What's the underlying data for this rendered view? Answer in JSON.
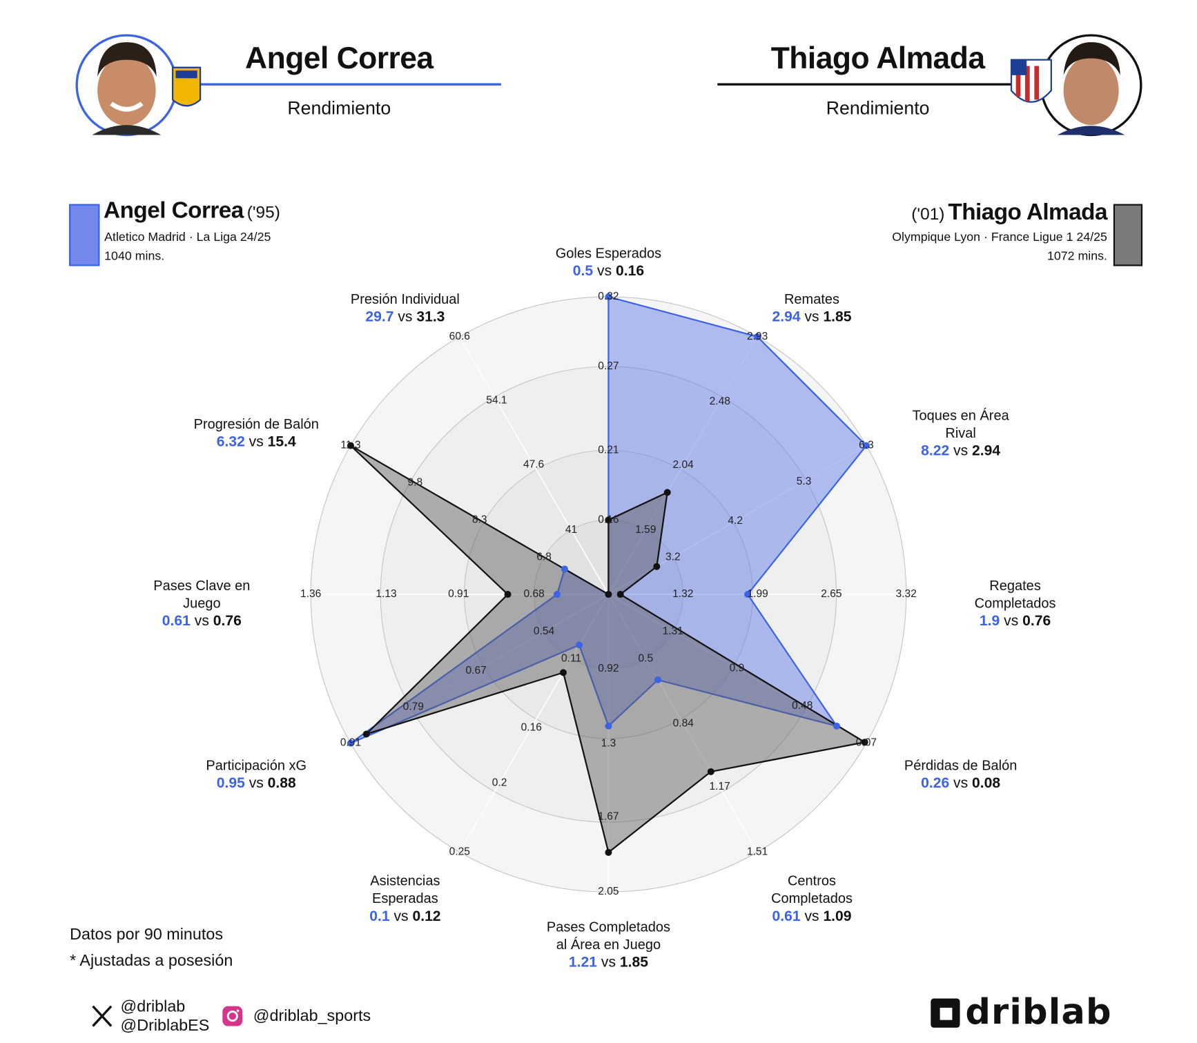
{
  "header": {
    "left": {
      "name": "Angel Correa",
      "subtitle": "Rendimiento"
    },
    "right": {
      "name": "Thiago Almada",
      "subtitle": "Rendimiento"
    }
  },
  "chart_data": {
    "type": "radar",
    "comparison_word": "vs",
    "axes": [
      {
        "label": "Goles Esperados",
        "lim": [
          0.16,
          0.32
        ],
        "ticks": [
          0.16,
          0.21,
          0.27,
          0.32
        ]
      },
      {
        "label": "Remates",
        "lim": [
          1.59,
          2.93
        ],
        "ticks": [
          1.59,
          2.04,
          2.48,
          2.93
        ]
      },
      {
        "label": "Toques en Área\nRival",
        "lim": [
          3.2,
          6.3
        ],
        "ticks": [
          3.2,
          4.2,
          5.3,
          6.3
        ]
      },
      {
        "label": "Regates\nCompletados",
        "lim": [
          1.32,
          3.32
        ],
        "ticks": [
          1.32,
          1.99,
          2.65,
          3.32
        ]
      },
      {
        "label": "Pérdidas de Balón",
        "lim": [
          1.31,
          0.07
        ],
        "ticks": [
          1.31,
          0.9,
          0.48,
          0.07
        ]
      },
      {
        "label": "Centros\nCompletados",
        "lim": [
          0.5,
          1.51
        ],
        "ticks": [
          0.5,
          0.84,
          1.17,
          1.51
        ]
      },
      {
        "label": "Pases Completados\nal Área en Juego",
        "lim": [
          0.92,
          2.05
        ],
        "ticks": [
          0.92,
          1.3,
          1.67,
          2.05
        ]
      },
      {
        "label": "Asistencias\nEsperadas",
        "lim": [
          0.11,
          0.25
        ],
        "ticks": [
          0.11,
          0.16,
          0.2,
          0.25
        ]
      },
      {
        "label": "Participación xG",
        "lim": [
          0.54,
          0.91
        ],
        "ticks": [
          0.54,
          0.67,
          0.79,
          0.91
        ]
      },
      {
        "label": "Pases Clave en\nJuego",
        "lim": [
          0.68,
          1.36
        ],
        "ticks": [
          0.68,
          0.91,
          1.13,
          1.36
        ]
      },
      {
        "label": "Progresión de Balón",
        "lim": [
          6.8,
          11.3
        ],
        "ticks": [
          6.8,
          8.3,
          9.8,
          11.3
        ]
      },
      {
        "label": "Presión Individual",
        "lim": [
          41,
          60.6
        ],
        "ticks": [
          41,
          47.6,
          54.1,
          60.6
        ]
      }
    ],
    "series": [
      {
        "name": "Angel Correa",
        "birth": "('95)",
        "team_league": "Atletico Madrid · La Liga 24/25",
        "minutes": "1040 mins.",
        "color": "#3b63e4",
        "fill": "#5a73e6",
        "values": [
          0.5,
          2.94,
          8.22,
          1.9,
          0.26,
          0.61,
          1.21,
          0.1,
          0.95,
          0.61,
          6.32,
          29.7
        ]
      },
      {
        "name": "Thiago Almada",
        "birth": "('01)",
        "team_league": "Olympique Lyon · France Ligue 1 24/25",
        "minutes": "1072 mins.",
        "color": "#111111",
        "fill": "#5a5a5a",
        "values": [
          0.16,
          1.85,
          2.94,
          0.76,
          0.08,
          1.09,
          1.85,
          0.12,
          0.88,
          0.76,
          15.4,
          31.3
        ]
      }
    ]
  },
  "footer": {
    "notes": [
      "Datos por 90 minutos",
      "* Ajustadas a posesión"
    ],
    "social": [
      "@driblab",
      "@DriblabES",
      "@driblab_sports"
    ],
    "brand": "driblab"
  }
}
